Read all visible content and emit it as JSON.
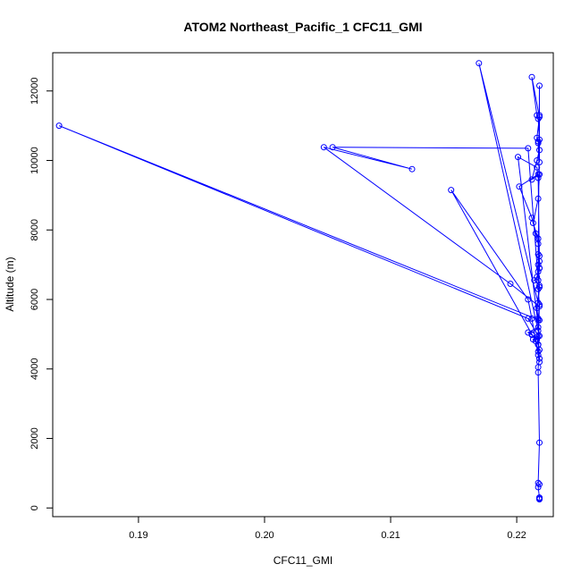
{
  "chart_data": {
    "type": "scatter",
    "title": "ATOM2 Northeast_Pacific_1 CFC11_GMI",
    "xlabel": "CFC11_GMI",
    "ylabel": "Altitude (m)",
    "xlim": [
      0.1832,
      0.2229
    ],
    "ylim": [
      -250,
      13100
    ],
    "xticks": [
      0.19,
      0.2,
      0.21,
      0.22
    ],
    "xtick_labels": [
      "0.19",
      "0.20",
      "0.21",
      "0.22"
    ],
    "yticks": [
      0,
      2000,
      4000,
      6000,
      8000,
      10000,
      12000
    ],
    "ytick_labels": [
      "0",
      "2000",
      "4000",
      "6000",
      "8000",
      "10000",
      "12000"
    ],
    "grid": false,
    "line_color": "#0000ff",
    "marker": "open-circle",
    "series": [
      {
        "x": [
          0.2218,
          0.2218,
          0.2218,
          0.2217,
          0.2218,
          0.2217,
          0.2218,
          0.2217,
          0.2217,
          0.2218,
          0.2217,
          0.2216,
          0.2212,
          0.2209,
          0.2217,
          0.2217,
          0.2216,
          0.2218,
          0.2214,
          0.2216,
          0.2217,
          0.2218,
          0.2217,
          0.2217,
          0.2215,
          0.2212,
          0.2202,
          0.2217,
          0.2212,
          0.2216,
          0.2218,
          0.2217,
          0.2216,
          0.2218,
          0.2212,
          0.2216,
          0.2217,
          0.2218,
          0.2217,
          0.2218,
          0.2217,
          0.2213,
          0.2217,
          0.2218,
          0.2217,
          0.2218,
          0.2217,
          0.217,
          0.2217,
          0.2217,
          0.2218,
          0.2217,
          0.2218,
          0.2212,
          0.2209,
          0.2148,
          0.2212,
          0.2215,
          0.2217,
          0.2218,
          0.2201,
          0.2216,
          0.2217,
          0.2218,
          0.2218,
          0.2217,
          0.2209,
          0.2054,
          0.2117,
          0.2047,
          0.2195,
          0.2218,
          0.2217,
          0.2218,
          0.1837,
          0.2209,
          0.2217,
          0.2213,
          0.2217,
          0.2218,
          0.2217,
          0.2218,
          0.2218,
          0.2218
        ],
        "y": [
          250,
          270,
          300,
          600,
          680,
          720,
          1880,
          3900,
          4050,
          4300,
          4700,
          4850,
          4980,
          5050,
          5200,
          5400,
          5750,
          6400,
          6550,
          6650,
          6800,
          6900,
          7300,
          7600,
          7900,
          8350,
          9250,
          9600,
          9450,
          10000,
          10300,
          10550,
          10650,
          11250,
          12400,
          11300,
          11200,
          10600,
          10500,
          9600,
          8900,
          8200,
          7750,
          7250,
          7000,
          6350,
          5900,
          12800,
          5100,
          4700,
          4550,
          4400,
          4200,
          5450,
          6000,
          9150,
          5000,
          4800,
          4500,
          4950,
          10100,
          9800,
          9500,
          7100,
          6900,
          6550,
          10350,
          10380,
          9750,
          10380,
          6450,
          5800,
          5450,
          5400,
          11000,
          5450,
          4950,
          4850,
          4700,
          5850,
          6300,
          12150,
          11300,
          9950
        ]
      }
    ]
  }
}
